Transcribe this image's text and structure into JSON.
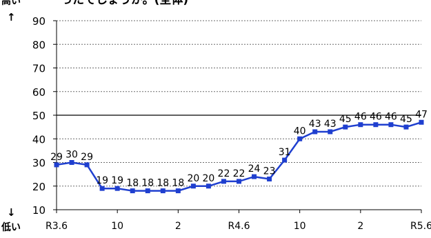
{
  "header": {
    "title_fragment": "ったでしょうか。(全体)"
  },
  "axis_notes": {
    "high_label": "高い",
    "high_arrow": "↑",
    "low_arrow": "↓",
    "low_label": "低い"
  },
  "chart_data": {
    "type": "line",
    "title": "",
    "xlabel": "",
    "ylabel": "",
    "ylim": [
      10,
      90
    ],
    "yticks": [
      10,
      20,
      30,
      40,
      50,
      60,
      70,
      80,
      90
    ],
    "x_tick_labels": [
      {
        "index": 0,
        "label": "R3.6"
      },
      {
        "index": 4,
        "label": "10"
      },
      {
        "index": 8,
        "label": "2"
      },
      {
        "index": 12,
        "label": "R4.6"
      },
      {
        "index": 16,
        "label": "10"
      },
      {
        "index": 20,
        "label": "2"
      },
      {
        "index": 24,
        "label": "R5.6"
      }
    ],
    "reference_line": 50,
    "grid": true,
    "series": [
      {
        "color": "#1f3fcf",
        "values": [
          29,
          30,
          29,
          19,
          19,
          18,
          18,
          18,
          18,
          20,
          20,
          22,
          22,
          24,
          23,
          31,
          40,
          43,
          43,
          45,
          46,
          46,
          46,
          45,
          47
        ]
      }
    ]
  }
}
